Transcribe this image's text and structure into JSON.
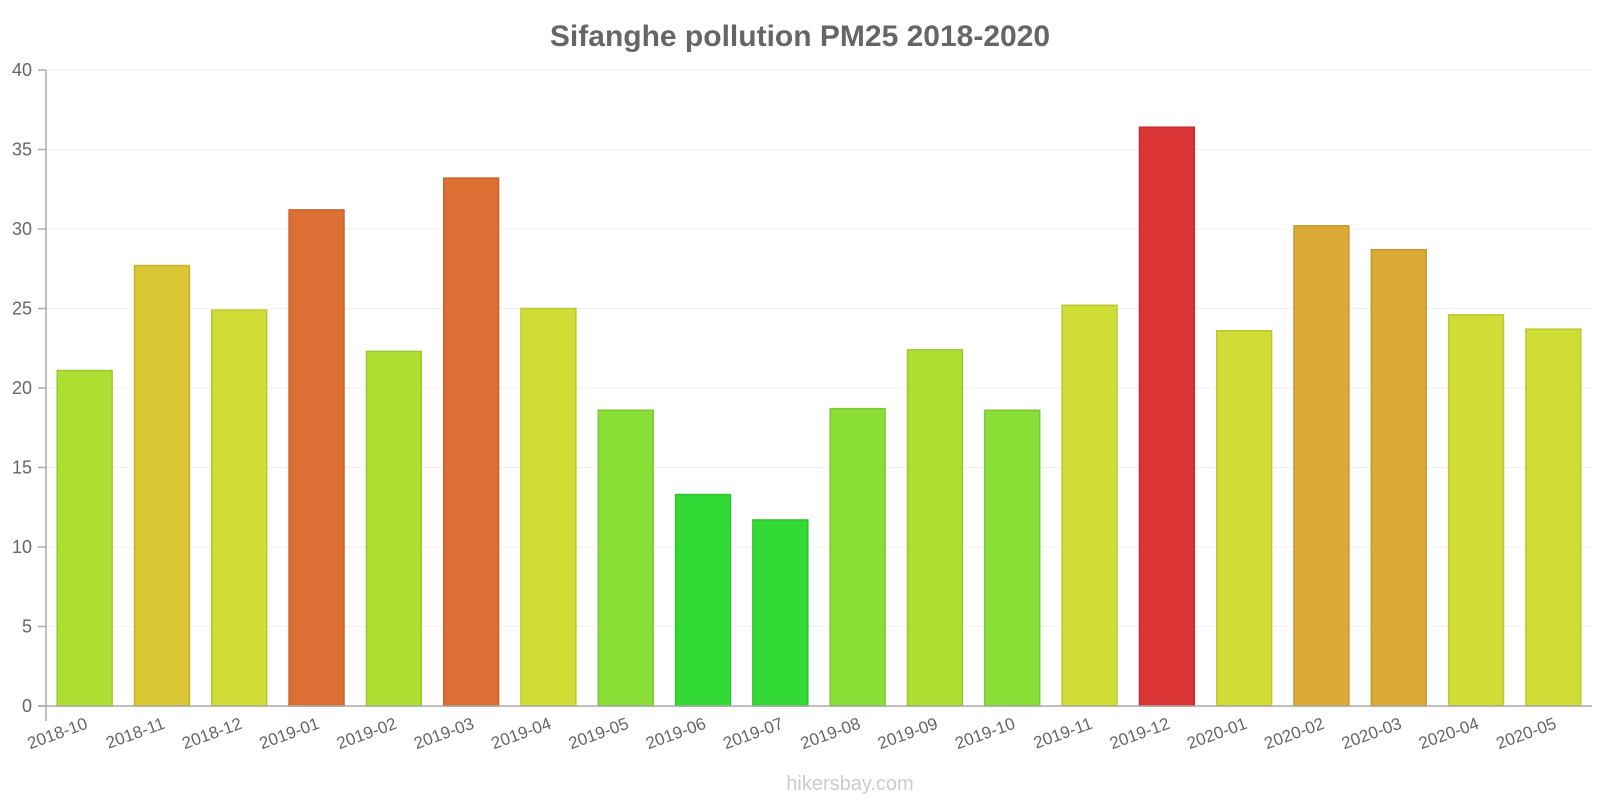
{
  "chart_data": {
    "type": "bar",
    "title": "Sifanghe pollution PM25 2018-2020",
    "xlabel": "",
    "ylabel": "",
    "ylim": [
      0,
      40
    ],
    "yticks": [
      0,
      5,
      10,
      15,
      20,
      25,
      30,
      35,
      40
    ],
    "grid": true,
    "categories": [
      "2018-10",
      "2018-11",
      "2018-12",
      "2019-01",
      "2019-02",
      "2019-03",
      "2019-04",
      "2019-05",
      "2019-06",
      "2019-07",
      "2019-08",
      "2019-09",
      "2019-10",
      "2019-11",
      "2019-12",
      "2020-01",
      "2020-02",
      "2020-03",
      "2020-04",
      "2020-05"
    ],
    "values": [
      21.1,
      27.7,
      24.9,
      31.2,
      22.3,
      33.2,
      25.0,
      18.6,
      13.3,
      11.7,
      18.7,
      22.4,
      18.6,
      25.2,
      36.4,
      23.6,
      30.2,
      28.7,
      24.6,
      23.7
    ],
    "colors": [
      "#addf33",
      "#dbc633",
      "#cfdd36",
      "#dd6e34",
      "#addf33",
      "#dd6e34",
      "#cfdd36",
      "#8adf36",
      "#33d935",
      "#33d935",
      "#8adf36",
      "#addf33",
      "#8adf36",
      "#cfdd36",
      "#db3434",
      "#cfdd36",
      "#dbaa36",
      "#dbaa36",
      "#cfdd36",
      "#cfdd36"
    ],
    "borders": [
      "#9cc82e",
      "#c5b22e",
      "#bac731",
      "#c6632f",
      "#9cc82e",
      "#c6632f",
      "#bac731",
      "#7cc831",
      "#2ec330",
      "#2ec330",
      "#7cc831",
      "#9cc82e",
      "#7cc831",
      "#bac731",
      "#c52f2f",
      "#bac731",
      "#c5992f",
      "#c5992f",
      "#bac731",
      "#bac731"
    ]
  },
  "footer": "hikersbay.com"
}
